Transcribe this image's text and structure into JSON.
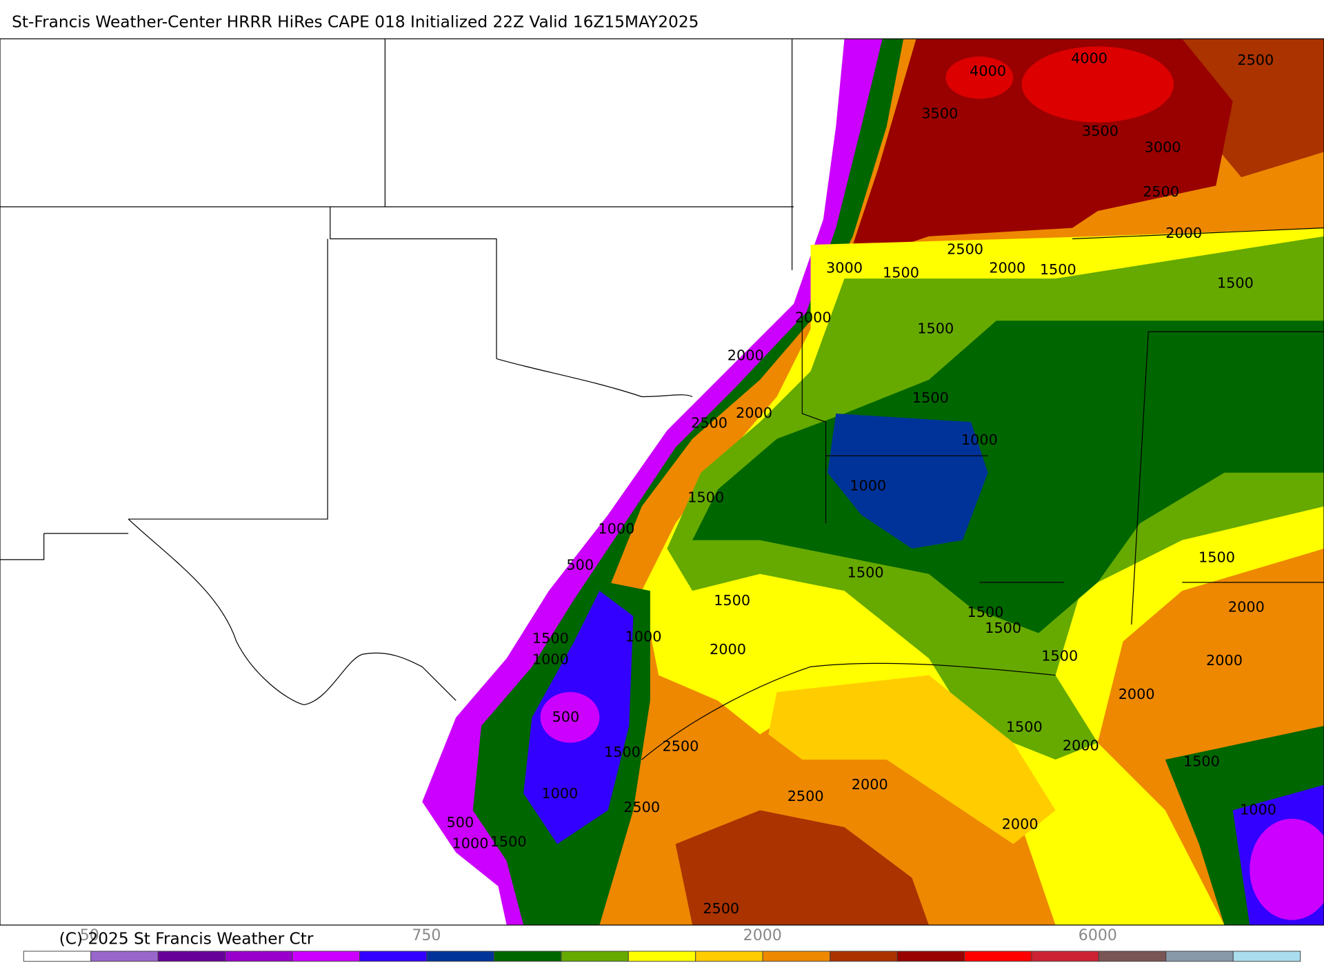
{
  "title": "St-Francis Weather-Center HRRR HiRes CAPE  018 Initialized  22Z Valid 16Z15MAY2025",
  "copyright": "(C) 2025 St Francis Weather Ctr",
  "contour_labels": [
    "4000",
    "4000",
    "2500",
    "3500",
    "3500",
    "3000",
    "2500",
    "2000",
    "2500",
    "2000",
    "1500",
    "3000",
    "1500",
    "1500",
    "2000",
    "1500",
    "2000",
    "1500",
    "2000",
    "2500",
    "1000",
    "1000",
    "1500",
    "1000",
    "500",
    "1500",
    "1500",
    "1500",
    "2000",
    "1500",
    "1500",
    "1000",
    "1500",
    "1000",
    "2000",
    "1500",
    "2000",
    "2000",
    "500",
    "1500",
    "2500",
    "1500",
    "2000",
    "1500",
    "1000",
    "2500",
    "2000",
    "2500",
    "1000",
    "2000",
    "500",
    "1000",
    "1500",
    "2500"
  ],
  "colorbar": {
    "colors": [
      "#ffffff",
      "#9966cc",
      "#660099",
      "#9900cc",
      "#cc00ff",
      "#3300ff",
      "#003399",
      "#006600",
      "#66aa00",
      "#ffff00",
      "#ffcc00",
      "#ee8800",
      "#aa3300",
      "#990000",
      "#ff0000",
      "#cc2233",
      "#7a5555",
      "#8899aa",
      "#aaddee"
    ],
    "ticks": [
      "50",
      "750",
      "2000",
      "6000"
    ]
  }
}
